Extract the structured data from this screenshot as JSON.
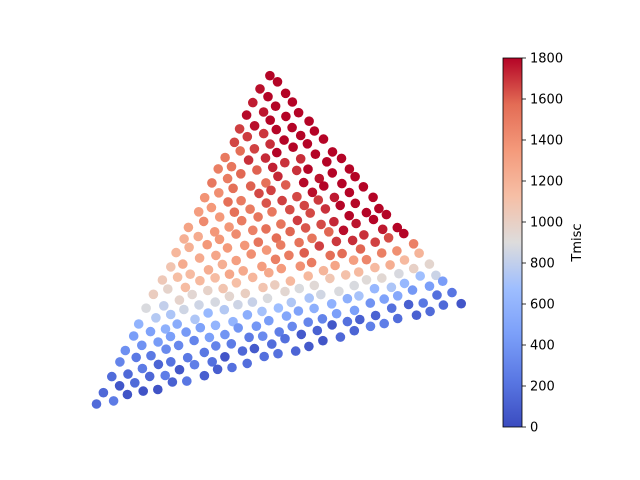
{
  "chart_data": {
    "type": "scatter",
    "title": "",
    "axes_visible": false,
    "legend": "none",
    "colorbar": {
      "label": "Tmisc",
      "colormap": "coolwarm",
      "vmin": 0,
      "vmax": 1800,
      "ticks": [
        0,
        200,
        400,
        600,
        800,
        1000,
        1200,
        1400,
        1600,
        1800
      ],
      "placement": "right"
    },
    "domain": {
      "shape": "triangle",
      "vertices": [
        [
          0.0,
          0.0
        ],
        [
          1.0,
          0.27
        ],
        [
          0.47,
          1.0
        ]
      ],
      "grid_steps": 24,
      "note_low": "bottom edge",
      "note_high": "right edge"
    }
  }
}
